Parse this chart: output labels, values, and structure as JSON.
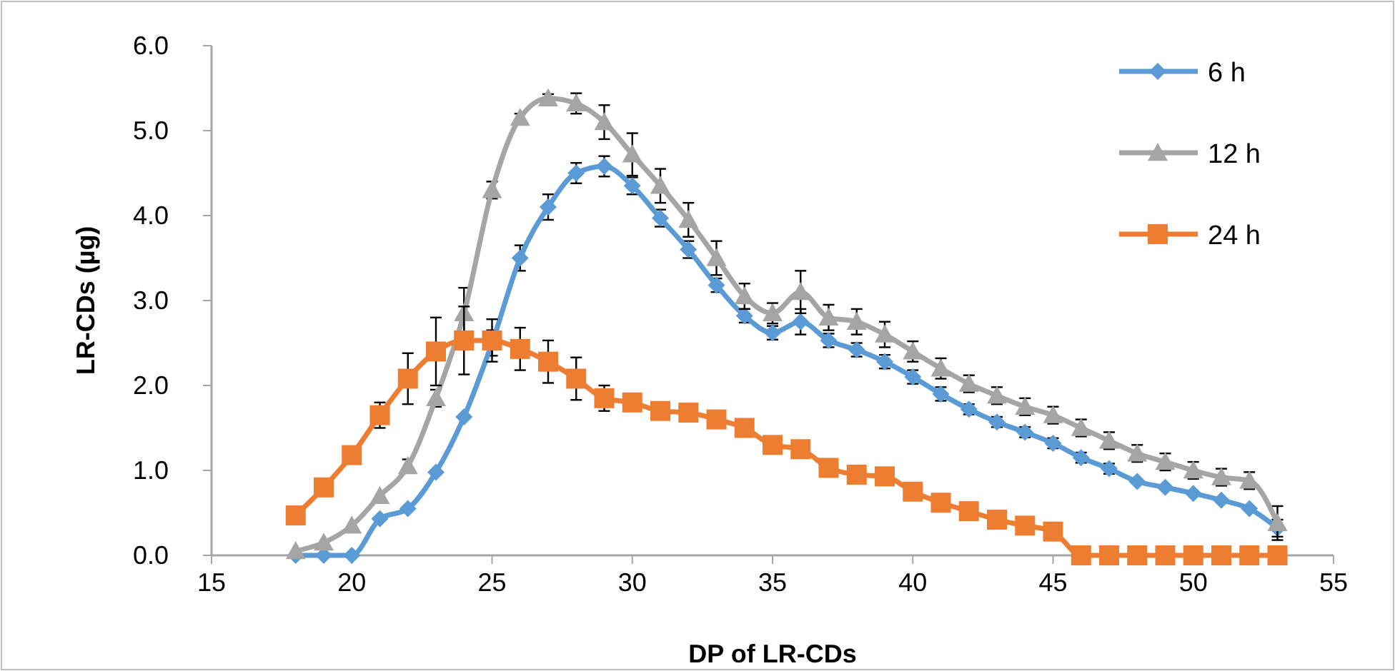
{
  "chart_data": {
    "type": "line",
    "xlabel": "DP of LR-CDs",
    "ylabel": "LR-CDs (µg)",
    "x": [
      18,
      19,
      20,
      21,
      22,
      23,
      24,
      25,
      26,
      27,
      28,
      29,
      30,
      31,
      32,
      33,
      34,
      35,
      36,
      37,
      38,
      39,
      40,
      41,
      42,
      43,
      44,
      45,
      46,
      47,
      48,
      49,
      50,
      51,
      52,
      53
    ],
    "series": [
      {
        "name": "6 h",
        "color": "#5b9bd5",
        "marker": "diamond",
        "values": [
          0,
          0,
          0,
          0.43,
          0.55,
          0.98,
          1.63,
          2.5,
          3.5,
          4.1,
          4.5,
          4.58,
          4.35,
          3.97,
          3.6,
          3.18,
          2.82,
          2.62,
          2.75,
          2.53,
          2.42,
          2.28,
          2.1,
          1.9,
          1.72,
          1.57,
          1.45,
          1.32,
          1.15,
          1.02,
          0.87,
          0.8,
          0.73,
          0.65,
          0.55,
          0.32
        ],
        "errors": [
          null,
          null,
          null,
          null,
          null,
          null,
          null,
          0.15,
          0.15,
          0.15,
          0.12,
          0.12,
          0.1,
          0.1,
          0.1,
          0.08,
          0.08,
          0.08,
          0.15,
          0.08,
          0.08,
          0.08,
          0.08,
          0.08,
          0.06,
          0.06,
          0.06,
          0.06,
          0.06,
          0.06,
          null,
          null,
          null,
          null,
          null,
          0.1
        ]
      },
      {
        "name": "12 h",
        "color": "#a5a5a5",
        "marker": "triangle",
        "values": [
          0.05,
          0.15,
          0.35,
          0.7,
          1.05,
          1.85,
          2.85,
          4.3,
          5.15,
          5.38,
          5.32,
          5.1,
          4.72,
          4.35,
          3.95,
          3.5,
          3.05,
          2.85,
          3.1,
          2.8,
          2.75,
          2.6,
          2.4,
          2.2,
          2.02,
          1.88,
          1.75,
          1.65,
          1.5,
          1.35,
          1.2,
          1.1,
          1.0,
          0.92,
          0.88,
          0.38
        ],
        "errors": [
          null,
          null,
          null,
          null,
          0.08,
          0.1,
          0.3,
          0.1,
          0.05,
          0.05,
          0.12,
          0.2,
          0.25,
          0.2,
          0.2,
          0.2,
          0.15,
          0.12,
          0.25,
          0.15,
          0.15,
          0.15,
          0.12,
          0.12,
          0.1,
          0.1,
          0.1,
          0.1,
          0.1,
          0.1,
          0.1,
          0.1,
          0.1,
          0.1,
          0.1,
          0.2
        ]
      },
      {
        "name": "24 h",
        "color": "#ed7d31",
        "marker": "square",
        "values": [
          0.47,
          0.8,
          1.18,
          1.65,
          2.08,
          2.4,
          2.53,
          2.53,
          2.43,
          2.28,
          2.08,
          1.85,
          1.8,
          1.7,
          1.68,
          1.6,
          1.5,
          1.3,
          1.25,
          1.03,
          0.95,
          0.93,
          0.75,
          0.62,
          0.52,
          0.42,
          0.35,
          0.28,
          0,
          0,
          0,
          0,
          0,
          0,
          0,
          0
        ],
        "errors": [
          null,
          null,
          null,
          0.15,
          0.3,
          0.4,
          0.4,
          0.25,
          0.25,
          0.25,
          0.25,
          0.15,
          null,
          null,
          null,
          null,
          null,
          null,
          null,
          null,
          null,
          null,
          null,
          null,
          null,
          null,
          null,
          null,
          null,
          null,
          null,
          null,
          null,
          null,
          null,
          null
        ]
      }
    ],
    "xlim": [
      15,
      55
    ],
    "xticks": [
      15,
      20,
      25,
      30,
      35,
      40,
      45,
      50,
      55
    ],
    "ylim": [
      0,
      6
    ],
    "yticks": [
      {
        "value": 0,
        "label": "0.0"
      },
      {
        "value": 1,
        "label": "1.0"
      },
      {
        "value": 2,
        "label": "2.0"
      },
      {
        "value": 3,
        "label": "3.0"
      },
      {
        "value": 4,
        "label": "4.0"
      },
      {
        "value": 5,
        "label": "5.0"
      },
      {
        "value": 6,
        "label": "6.0"
      }
    ],
    "grid": false,
    "legend": "top right",
    "line_style": "solid"
  }
}
